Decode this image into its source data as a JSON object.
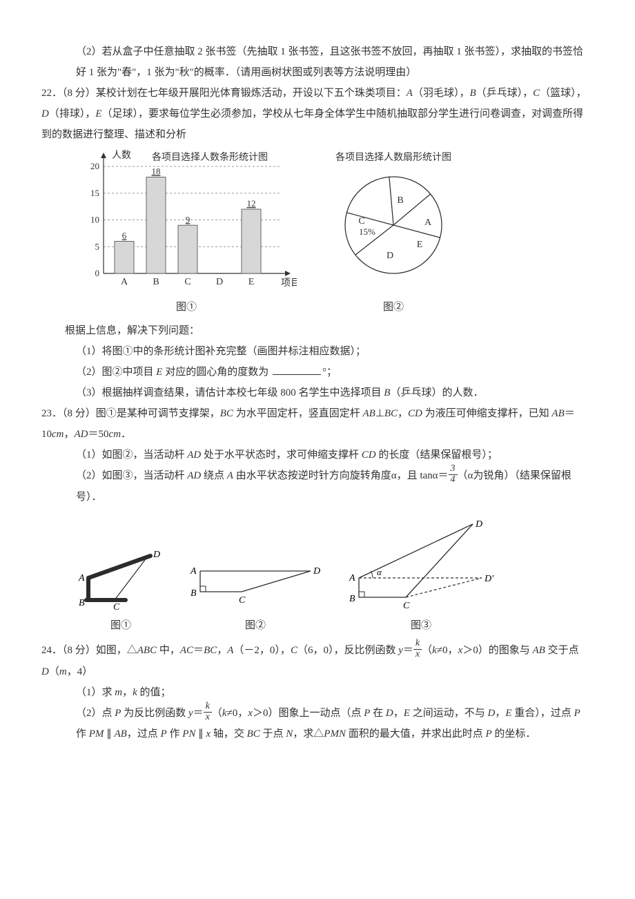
{
  "q21": {
    "part2": "（2）若从盒子中任意抽取 2 张书签（先抽取 1 张书签，且这张书签不放回，再抽取 1 张书签），求抽取的书签恰好 1 张为\"春\"，1 张为\"秋\"的概率．（请用画树状图或列表等方法说明理由）"
  },
  "q22": {
    "head": "22．（8 分）某校计划在七年级开展阳光体育锻炼活动，开设以下五个珠类项目：",
    "head2": "（羽毛球），",
    "head3": "（乒乓球），",
    "head4": "（篮球），",
    "head5": "（排球），",
    "head6": "（足球），要求每位学生必须参加，学校从七年身全体学生中随机抽取部分学生进行问卷调查，对调查所得到的数据进行整理、描述和分析",
    "barTitle": "各项目选择人数条形统计图",
    "pieTitle": "各项目选择人数扇形统计图",
    "yLabel": "人数",
    "xLabel": "项目",
    "barChart": {
      "type": "bar",
      "categories": [
        "A",
        "B",
        "C",
        "D",
        "E"
      ],
      "values": [
        6,
        18,
        9,
        null,
        12
      ],
      "valueLabels": [
        "6",
        "18",
        "9",
        "",
        "12"
      ],
      "yticks": [
        0,
        5,
        10,
        15,
        20
      ],
      "ylim": [
        0,
        20
      ],
      "barColor": "#d7d7d7",
      "barStroke": "#656565",
      "axisColor": "#333333",
      "gridColor": "#9a9a9a",
      "barWidth": 28,
      "gap": 18
    },
    "pieChart": {
      "type": "pie",
      "labels": [
        "A",
        "B",
        "C",
        "D",
        "E"
      ],
      "cPercent": "15%",
      "stroke": "#333333",
      "fill": "#ffffff"
    },
    "cap1": "图①",
    "cap2": "图②",
    "afterCharts": "根据上信息，解决下列问题：",
    "p1": "（1）将图①中的条形统计图补充完整（画图并标注相应数据）；",
    "p2a": "（2）图②中项目 ",
    "p2b": " 对应的圆心角的度数为 ",
    "p2c": "°；",
    "p3a": "（3）根据抽样调查结果，请估计本校七年级 800 名学生中选择项目 ",
    "p3b": "（乒乓球）的人数．"
  },
  "q23": {
    "head": "23．（8 分）图①是某种可调节支撑架，",
    "t1": " 为水平固定杆，竖直固定杆 ",
    "t2": "，",
    "t3": " 为液压可伸缩支撑杆，已知 ",
    "t4": "＝10",
    "t5": "，",
    "t6": "＝50",
    "t7": "．",
    "p1a": "（1）如图②，当活动杆 ",
    "p1b": " 处于水平状态时，求可伸缩支撑杆 ",
    "p1c": " 的长度（结果保留根号）；",
    "p2a": "（2）如图③，当活动杆 ",
    "p2b": " 绕点 ",
    "p2c": " 由水平状态按逆时针方向旋转角度α，且 tanα＝",
    "p2d": "（α为锐角）（结果保留根号）．",
    "frac": {
      "num": "3",
      "den": "4"
    },
    "cap1": "图①",
    "cap2": "图②",
    "cap3": "图③",
    "labels": {
      "A": "A",
      "B": "B",
      "C": "C",
      "D": "D",
      "Dp": "D′",
      "alpha": "α"
    }
  },
  "q24": {
    "head": "24．（8 分）如图，△",
    "t1": " 中，",
    "t2": "＝",
    "t3": "，",
    "t4": "（－2，0），",
    "t5": "（6，0），反比例函数 ",
    "t6": "＝",
    "t7": "（",
    "t8": "≠0，",
    "t9": "＞0）的图象与 ",
    "t10": " 交于点 ",
    "t11": "（",
    "t12": "，4）",
    "frac": {
      "num": "k",
      "den": "x"
    },
    "p1": "（1）求 ",
    "p1b": "，",
    "p1c": " 的值；",
    "p2a": "（2）点 ",
    "p2b": " 为反比例函数 ",
    "p2c": "＝",
    "p2d": "（",
    "p2e": "≠0，",
    "p2f": "＞0）图象上一动点（点 ",
    "p2g": " 在 ",
    "p2h": "，",
    "p2i": " 之间运动，不与 ",
    "p2j": "，",
    "p2k": " 重合），过点 ",
    "p2l": " 作 ",
    "p2m": "，过点 ",
    "p2n": " 作 ",
    "p2o": " 轴，交 ",
    "p2p": " 于点 ",
    "p2q": "，求△",
    "p2r": " 面积的最大值，并求出此时点 ",
    "p2s": " 的坐标．"
  }
}
